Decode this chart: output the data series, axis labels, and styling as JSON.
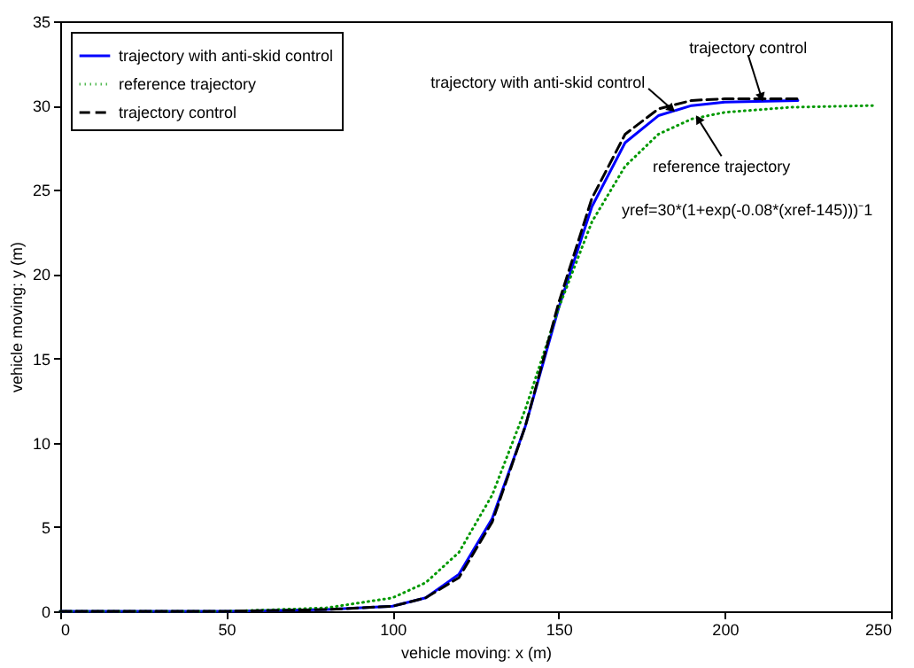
{
  "chart_data": {
    "type": "line",
    "xlabel": "vehicle moving: x (m)",
    "ylabel": "vehicle moving: y (m)",
    "xlim": [
      0,
      250
    ],
    "xticks": [
      0,
      50,
      100,
      150,
      200,
      250
    ],
    "ylim": [
      0,
      35
    ],
    "yticks": [
      0,
      5,
      10,
      15,
      20,
      25,
      30,
      35
    ],
    "grid": false,
    "legend": "top left",
    "series": [
      {
        "name": "trajectory with anti-skid control",
        "color": "#0000ff",
        "line_style": "solid",
        "x": [
          0,
          50,
          80,
          100,
          110,
          120,
          130,
          140,
          150,
          160,
          170,
          180,
          190,
          200,
          222
        ],
        "values": [
          0,
          0,
          0.1,
          0.3,
          0.8,
          2.2,
          5.5,
          11,
          18,
          24,
          27.8,
          29.4,
          30,
          30.2,
          30.3
        ]
      },
      {
        "name": "reference trajectory",
        "color": "#009900",
        "line_style": "dotted",
        "x": [
          0,
          50,
          80,
          100,
          110,
          120,
          130,
          140,
          145,
          150,
          160,
          170,
          180,
          190,
          200,
          220,
          245
        ],
        "values": [
          0,
          0,
          0.2,
          0.8,
          1.7,
          3.5,
          6.9,
          12,
          15,
          18,
          23.1,
          26.4,
          28.3,
          29.2,
          29.6,
          29.9,
          30
        ]
      },
      {
        "name": "trajectory control",
        "color": "#000000",
        "line_style": "dashed",
        "x": [
          0,
          50,
          80,
          100,
          110,
          120,
          130,
          140,
          150,
          160,
          170,
          180,
          190,
          200,
          222
        ],
        "values": [
          0,
          0,
          0.1,
          0.3,
          0.8,
          2,
          5.3,
          11,
          18.3,
          24.5,
          28.3,
          29.8,
          30.3,
          30.4,
          30.4
        ]
      }
    ],
    "annotations": [
      {
        "text": "trajectory with anti-skid control",
        "x": 184,
        "y": 29.8
      },
      {
        "text": "trajectory control",
        "x": 211,
        "y": 30.5
      },
      {
        "text": "reference trajectory",
        "x": 192,
        "y": 29.2
      },
      "yref=30*(1+exp(-0.08*(xref-145)))⁻1"
    ]
  }
}
